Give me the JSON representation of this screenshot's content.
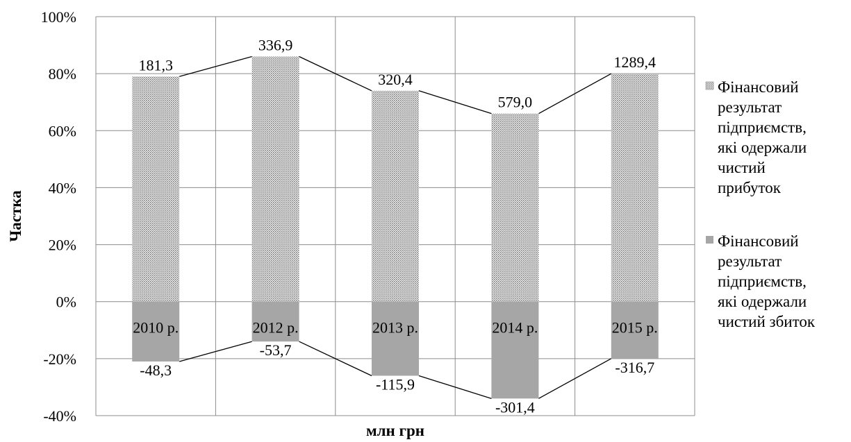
{
  "chart_data": {
    "type": "bar",
    "stacked": true,
    "categories": [
      "2010 р.",
      "2012 р.",
      "2013 р.",
      "2014 р.",
      "2015 р."
    ],
    "series": [
      {
        "name": "Фінансовий результат підприємств, які одержали чистий прибуток",
        "values": [
          79,
          86,
          74,
          66,
          80
        ],
        "labels": [
          "181,3",
          "336,9",
          "320,4",
          "579,0",
          "1289,4"
        ],
        "pattern": "dotted",
        "color": "#c8c8c8"
      },
      {
        "name": "Фінансовий результат підприємств, які одержали чистий збиток",
        "values": [
          -21,
          -14,
          -26,
          -34,
          -20
        ],
        "labels": [
          "-48,3",
          "-53,7",
          "-115,9",
          "-301,4",
          "-316,7"
        ],
        "pattern": "solid",
        "color": "#a6a6a6"
      }
    ],
    "xlabel": "млн грн",
    "ylabel": "Частка",
    "ylim": [
      -40,
      100
    ],
    "yticks": [
      "100%",
      "80%",
      "60%",
      "40%",
      "20%",
      "0%",
      "-20%",
      "-40%"
    ],
    "grid": true,
    "legend_position": "right"
  }
}
